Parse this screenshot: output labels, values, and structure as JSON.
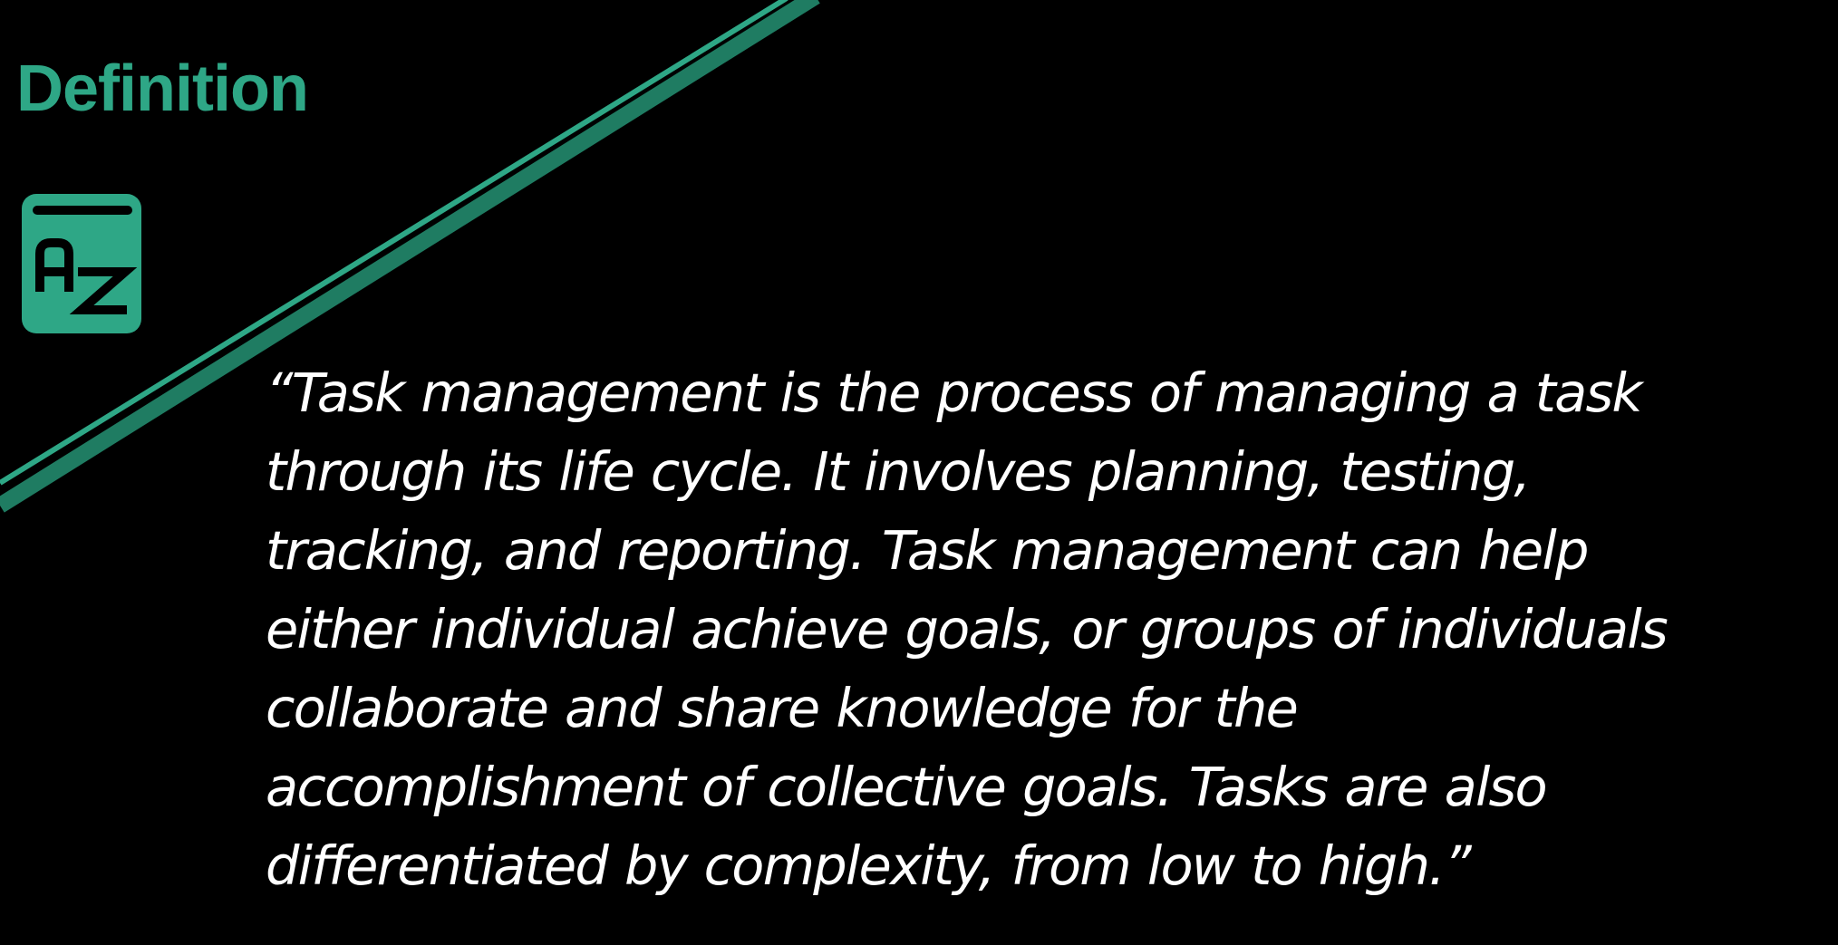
{
  "slide": {
    "title": "Definition",
    "icon": "dictionary-az-icon",
    "icon_letters": "AZ",
    "quote": "“Task management is the process of managing a task through its life cycle. It involves planning, testing, tracking, and reporting. Task management can help either individual achieve goals, or groups of individuals collaborate and share knowledge for the accomplishment of collective goals. Tasks are also differentiated by complexity, from low to high.”"
  },
  "colors": {
    "background": "#000000",
    "accent": "#2ea786",
    "accent_dark": "#1f7c62",
    "text": "#ffffff"
  }
}
